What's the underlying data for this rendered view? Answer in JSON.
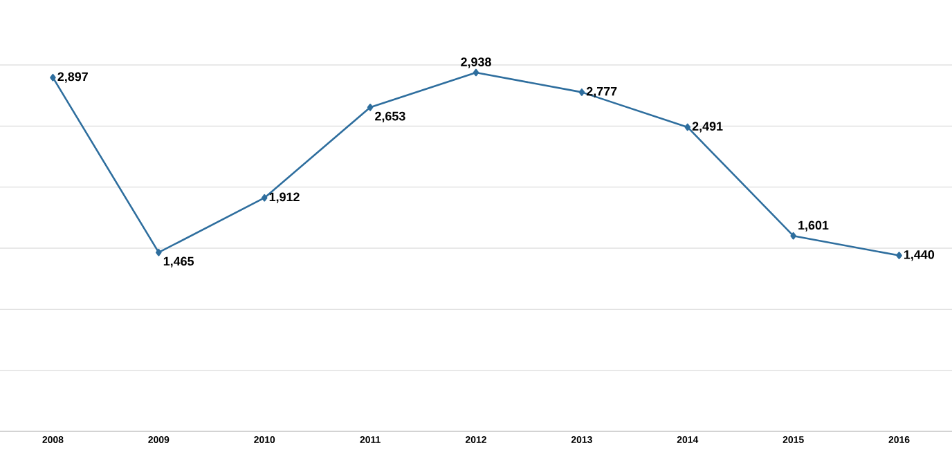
{
  "chart_data": {
    "type": "line",
    "categories": [
      "2008",
      "2009",
      "2010",
      "2011",
      "2012",
      "2013",
      "2014",
      "2015",
      "2016"
    ],
    "values": [
      2897,
      1465,
      1912,
      2653,
      2938,
      2777,
      2491,
      1601,
      1440
    ],
    "value_labels": [
      "2,897",
      "1,465",
      "1,912",
      "2,653",
      "2,938",
      "2,777",
      "2,491",
      "1,601",
      "1,440"
    ],
    "color": "#2e6e9e",
    "marker": "diamond",
    "ylim": [
      0,
      3000
    ],
    "yticks": [
      {
        "value": 0,
        "label": null
      },
      {
        "value": 500,
        "label": null
      },
      {
        "value": 1000,
        "label": null
      },
      {
        "value": 1500,
        "label": null
      },
      {
        "value": 2000,
        "label": null
      },
      {
        "value": 2500,
        "label": null
      },
      {
        "value": 3000,
        "label": null
      }
    ],
    "grid": "y",
    "tick_labels": "x"
  }
}
